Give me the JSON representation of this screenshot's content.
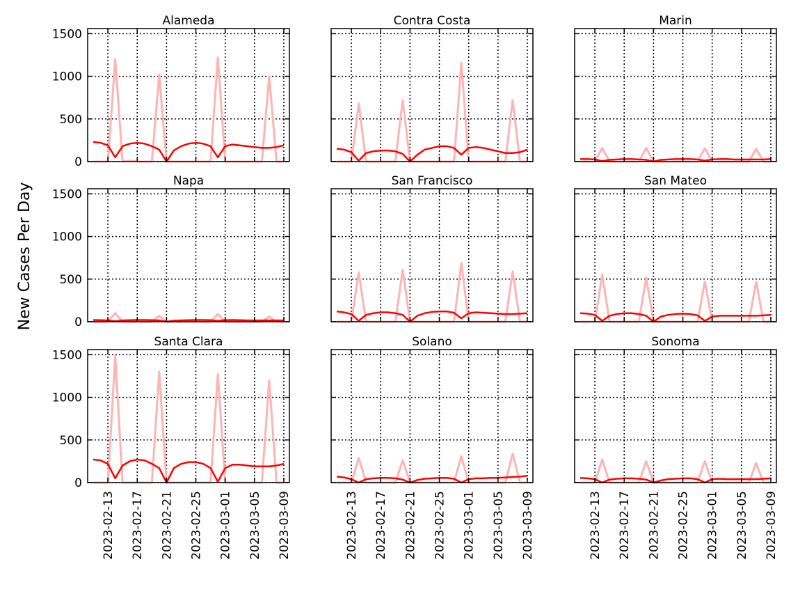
{
  "figure": {
    "ylabel": "New Cases Per Day",
    "colors": {
      "raw": "#ffb3b3",
      "smooth": "#ff0000",
      "grid": "#000000"
    }
  },
  "chart_data": {
    "type": "line",
    "dates": [
      "2023-02-11",
      "2023-02-12",
      "2023-02-13",
      "2023-02-14",
      "2023-02-15",
      "2023-02-16",
      "2023-02-17",
      "2023-02-18",
      "2023-02-19",
      "2023-02-20",
      "2023-02-21",
      "2023-02-22",
      "2023-02-23",
      "2023-02-24",
      "2023-02-25",
      "2023-02-26",
      "2023-02-27",
      "2023-02-28",
      "2023-03-01",
      "2023-03-02",
      "2023-03-03",
      "2023-03-04",
      "2023-03-05",
      "2023-03-06",
      "2023-03-07",
      "2023-03-08",
      "2023-03-09"
    ],
    "xticks": [
      "2023-02-13",
      "2023-02-17",
      "2023-02-21",
      "2023-02-25",
      "2023-03-01",
      "2023-03-05",
      "2023-03-09"
    ],
    "ylim": [
      0,
      1560
    ],
    "yticks": [
      0,
      500,
      1000,
      1500
    ],
    "grid": true,
    "panels": [
      {
        "title": "Alameda",
        "raw": [
          0,
          0,
          0,
          1200,
          0,
          10,
          0,
          0,
          0,
          1020,
          0,
          0,
          0,
          0,
          0,
          0,
          0,
          1220,
          0,
          0,
          0,
          0,
          0,
          0,
          1000,
          0,
          0
        ],
        "smooth": [
          230,
          220,
          190,
          50,
          180,
          210,
          220,
          210,
          180,
          140,
          0,
          130,
          180,
          210,
          220,
          210,
          180,
          50,
          180,
          200,
          190,
          180,
          170,
          160,
          160,
          170,
          190
        ]
      },
      {
        "title": "Contra Costa",
        "raw": [
          0,
          0,
          0,
          680,
          0,
          0,
          0,
          0,
          0,
          720,
          0,
          0,
          0,
          0,
          0,
          0,
          0,
          1160,
          0,
          0,
          0,
          0,
          0,
          0,
          720,
          0,
          0
        ],
        "smooth": [
          150,
          140,
          110,
          10,
          100,
          120,
          130,
          130,
          120,
          90,
          0,
          80,
          140,
          160,
          180,
          180,
          160,
          80,
          160,
          170,
          160,
          140,
          120,
          100,
          100,
          110,
          140
        ]
      },
      {
        "title": "Marin",
        "raw": [
          0,
          0,
          0,
          160,
          0,
          0,
          0,
          0,
          0,
          160,
          0,
          0,
          0,
          0,
          0,
          0,
          0,
          155,
          0,
          0,
          0,
          0,
          0,
          0,
          150,
          0,
          0
        ],
        "smooth": [
          30,
          30,
          25,
          5,
          20,
          25,
          30,
          30,
          25,
          20,
          0,
          20,
          25,
          30,
          30,
          30,
          25,
          10,
          25,
          30,
          30,
          25,
          25,
          25,
          25,
          25,
          30
        ]
      },
      {
        "title": "Napa",
        "raw": [
          0,
          0,
          0,
          100,
          0,
          0,
          0,
          0,
          0,
          70,
          0,
          0,
          0,
          0,
          0,
          0,
          0,
          90,
          0,
          0,
          0,
          0,
          0,
          0,
          60,
          0,
          0
        ],
        "smooth": [
          20,
          18,
          15,
          5,
          15,
          18,
          20,
          20,
          18,
          15,
          0,
          12,
          15,
          18,
          20,
          20,
          18,
          10,
          18,
          20,
          18,
          15,
          15,
          15,
          15,
          15,
          15
        ]
      },
      {
        "title": "San Francisco",
        "raw": [
          0,
          0,
          0,
          580,
          0,
          0,
          0,
          0,
          0,
          610,
          0,
          0,
          0,
          0,
          0,
          0,
          0,
          690,
          0,
          0,
          0,
          0,
          0,
          0,
          590,
          0,
          0
        ],
        "smooth": [
          120,
          110,
          90,
          10,
          80,
          100,
          110,
          110,
          100,
          80,
          0,
          70,
          100,
          115,
          120,
          120,
          105,
          40,
          100,
          110,
          105,
          100,
          95,
          90,
          90,
          95,
          100
        ]
      },
      {
        "title": "San Mateo",
        "raw": [
          0,
          0,
          0,
          550,
          0,
          0,
          0,
          0,
          0,
          520,
          0,
          0,
          0,
          0,
          0,
          0,
          0,
          470,
          0,
          0,
          0,
          0,
          0,
          0,
          470,
          0,
          0
        ],
        "smooth": [
          100,
          95,
          80,
          10,
          70,
          90,
          100,
          100,
          90,
          70,
          0,
          60,
          80,
          90,
          95,
          90,
          75,
          10,
          60,
          70,
          70,
          70,
          70,
          70,
          70,
          75,
          80
        ]
      },
      {
        "title": "Santa Clara",
        "raw": [
          0,
          0,
          0,
          1490,
          0,
          0,
          0,
          0,
          0,
          1300,
          0,
          0,
          0,
          0,
          0,
          0,
          0,
          1270,
          0,
          0,
          0,
          0,
          0,
          0,
          1200,
          0,
          0
        ],
        "smooth": [
          270,
          260,
          220,
          50,
          200,
          250,
          270,
          260,
          220,
          170,
          0,
          170,
          220,
          240,
          240,
          220,
          170,
          10,
          170,
          210,
          210,
          200,
          190,
          190,
          190,
          200,
          220
        ]
      },
      {
        "title": "Solano",
        "raw": [
          0,
          0,
          0,
          290,
          0,
          0,
          0,
          0,
          0,
          260,
          0,
          0,
          0,
          0,
          0,
          0,
          0,
          310,
          0,
          0,
          0,
          0,
          0,
          0,
          340,
          0,
          0
        ],
        "smooth": [
          70,
          60,
          40,
          0,
          40,
          50,
          55,
          55,
          50,
          35,
          0,
          30,
          45,
          50,
          55,
          55,
          45,
          0,
          40,
          50,
          50,
          55,
          55,
          60,
          65,
          70,
          80
        ]
      },
      {
        "title": "Sonoma",
        "raw": [
          0,
          0,
          0,
          270,
          0,
          0,
          0,
          0,
          0,
          250,
          0,
          0,
          0,
          0,
          0,
          0,
          0,
          250,
          0,
          0,
          0,
          0,
          0,
          0,
          230,
          0,
          0
        ],
        "smooth": [
          55,
          50,
          40,
          0,
          35,
          45,
          50,
          50,
          45,
          35,
          0,
          25,
          40,
          45,
          50,
          50,
          40,
          0,
          40,
          45,
          40,
          40,
          40,
          40,
          40,
          45,
          50
        ]
      }
    ]
  }
}
